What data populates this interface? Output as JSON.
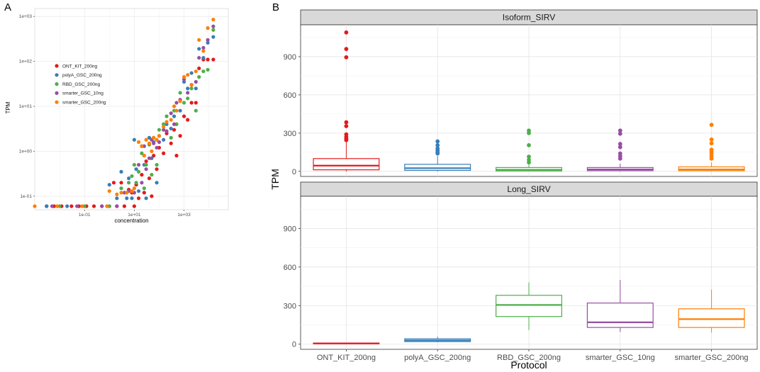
{
  "panels": {
    "a_label": "A",
    "b_label": "B"
  },
  "chart_data": [
    {
      "type": "scatter",
      "panel": "A",
      "xlabel": "concentration",
      "ylabel": "TPM",
      "x_scale": "log10",
      "y_scale": "log10",
      "xlim": [
        0.001,
        60000
      ],
      "ylim": [
        0.05,
        1500
      ],
      "x_ticks": [
        {
          "value": 0.1,
          "label": "1e-01"
        },
        {
          "value": 10,
          "label": "1e+01"
        },
        {
          "value": 1000,
          "label": "1e+03"
        }
      ],
      "y_ticks": [
        {
          "value": 0.1,
          "label": "1e-01"
        },
        {
          "value": 1,
          "label": "1e+00"
        },
        {
          "value": 10,
          "label": "1e+01"
        },
        {
          "value": 100,
          "label": "1e+02"
        },
        {
          "value": 1000,
          "label": "1e+03"
        }
      ],
      "legend_position": "inside-left",
      "series": [
        {
          "name": "ONT_KIT_200ng",
          "color": "#E41A1C",
          "points": [
            [
              0.003,
              0.06
            ],
            [
              0.006,
              0.06
            ],
            [
              0.012,
              0.06
            ],
            [
              0.03,
              0.06
            ],
            [
              0.06,
              0.06
            ],
            [
              0.12,
              0.06
            ],
            [
              0.24,
              0.06
            ],
            [
              0.5,
              0.06
            ],
            [
              1,
              0.06
            ],
            [
              1.5,
              0.2
            ],
            [
              2,
              0.06
            ],
            [
              3,
              0.2
            ],
            [
              4,
              0.06
            ],
            [
              6,
              0.14
            ],
            [
              8,
              0.12
            ],
            [
              10,
              0.06
            ],
            [
              12,
              0.18
            ],
            [
              15,
              0.09
            ],
            [
              20,
              0.3
            ],
            [
              25,
              0.12
            ],
            [
              30,
              0.6
            ],
            [
              40,
              0.25
            ],
            [
              50,
              0.1
            ],
            [
              60,
              0.8
            ],
            [
              80,
              0.4
            ],
            [
              100,
              1.2
            ],
            [
              150,
              0.9
            ],
            [
              200,
              2.5
            ],
            [
              300,
              1.5
            ],
            [
              400,
              3
            ],
            [
              500,
              0.8
            ],
            [
              700,
              2.2
            ],
            [
              1000,
              6
            ],
            [
              1400,
              5
            ],
            [
              2000,
              12
            ],
            [
              3000,
              12
            ],
            [
              4000,
              70
            ],
            [
              6000,
              110
            ],
            [
              9000,
              110
            ],
            [
              15000,
              110
            ]
          ]
        },
        {
          "name": "polyA_GSC_200ng",
          "color": "#377EB8",
          "points": [
            [
              0.003,
              0.06
            ],
            [
              0.02,
              0.06
            ],
            [
              1,
              0.18
            ],
            [
              2,
              0.09
            ],
            [
              3,
              0.35
            ],
            [
              5,
              0.09
            ],
            [
              6,
              0.25
            ],
            [
              8,
              0.09
            ],
            [
              10,
              1.8
            ],
            [
              12,
              0.4
            ],
            [
              15,
              0.13
            ],
            [
              20,
              1.3
            ],
            [
              25,
              0.5
            ],
            [
              30,
              0.09
            ],
            [
              40,
              2
            ],
            [
              50,
              0.7
            ],
            [
              60,
              1.6
            ],
            [
              80,
              0.2
            ],
            [
              100,
              2.2
            ],
            [
              150,
              1.8
            ],
            [
              200,
              4
            ],
            [
              300,
              3.2
            ],
            [
              400,
              6
            ],
            [
              500,
              4
            ],
            [
              700,
              8
            ],
            [
              1000,
              35
            ],
            [
              1400,
              25
            ],
            [
              2000,
              55
            ],
            [
              3000,
              25
            ],
            [
              4000,
              190
            ],
            [
              6000,
              120
            ],
            [
              9000,
              260
            ],
            [
              15000,
              350
            ]
          ]
        },
        {
          "name": "RBD_GSC_200ng",
          "color": "#4DAF4A",
          "points": [
            [
              0.01,
              0.06
            ],
            [
              0.1,
              0.06
            ],
            [
              1,
              0.06
            ],
            [
              3,
              0.15
            ],
            [
              6,
              0.2
            ],
            [
              8,
              0.28
            ],
            [
              10,
              0.5
            ],
            [
              12,
              0.2
            ],
            [
              15,
              0.35
            ],
            [
              20,
              0.9
            ],
            [
              25,
              0.15
            ],
            [
              30,
              0.5
            ],
            [
              40,
              1.4
            ],
            [
              50,
              0.3
            ],
            [
              60,
              2
            ],
            [
              80,
              0.5
            ],
            [
              100,
              3
            ],
            [
              150,
              4
            ],
            [
              200,
              6
            ],
            [
              300,
              2
            ],
            [
              400,
              8
            ],
            [
              500,
              4
            ],
            [
              700,
              20
            ],
            [
              1000,
              12
            ],
            [
              1400,
              15
            ],
            [
              2000,
              25
            ],
            [
              3000,
              8
            ],
            [
              4000,
              45
            ],
            [
              6000,
              60
            ],
            [
              9000,
              65
            ],
            [
              15000,
              500
            ]
          ]
        },
        {
          "name": "smarter_GSC_10ng",
          "color": "#984EA3",
          "points": [
            [
              0.005,
              0.06
            ],
            [
              0.05,
              0.06
            ],
            [
              0.5,
              0.06
            ],
            [
              2,
              0.06
            ],
            [
              4,
              0.12
            ],
            [
              6,
              0.13
            ],
            [
              10,
              0.12
            ],
            [
              15,
              0.5
            ],
            [
              20,
              0.2
            ],
            [
              25,
              1.3
            ],
            [
              30,
              0.4
            ],
            [
              40,
              0.7
            ],
            [
              50,
              1.8
            ],
            [
              60,
              1.5
            ],
            [
              80,
              1.2
            ],
            [
              100,
              1.6
            ],
            [
              150,
              3
            ],
            [
              200,
              2.8
            ],
            [
              300,
              7
            ],
            [
              400,
              4
            ],
            [
              500,
              12
            ],
            [
              700,
              14
            ],
            [
              1000,
              40
            ],
            [
              1400,
              20
            ],
            [
              2000,
              30
            ],
            [
              3000,
              35
            ],
            [
              4000,
              120
            ],
            [
              6000,
              200
            ],
            [
              9000,
              300
            ],
            [
              15000,
              600
            ]
          ]
        },
        {
          "name": "smarter_GSC_200ng",
          "color": "#FF7F00",
          "points": [
            [
              0.001,
              0.06
            ],
            [
              0.008,
              0.06
            ],
            [
              0.08,
              0.06
            ],
            [
              0.8,
              0.06
            ],
            [
              1,
              0.13
            ],
            [
              2,
              0.11
            ],
            [
              3,
              0.12
            ],
            [
              5,
              0.12
            ],
            [
              8,
              0.13
            ],
            [
              10,
              0.15
            ],
            [
              15,
              1.6
            ],
            [
              20,
              1.3
            ],
            [
              25,
              0.8
            ],
            [
              30,
              1.8
            ],
            [
              40,
              1.5
            ],
            [
              50,
              1
            ],
            [
              60,
              2
            ],
            [
              80,
              1.8
            ],
            [
              100,
              2.2
            ],
            [
              150,
              3.5
            ],
            [
              200,
              4.5
            ],
            [
              300,
              5
            ],
            [
              400,
              10
            ],
            [
              500,
              8
            ],
            [
              700,
              13
            ],
            [
              1000,
              45
            ],
            [
              1400,
              50
            ],
            [
              2000,
              30
            ],
            [
              3000,
              60
            ],
            [
              4000,
              300
            ],
            [
              6000,
              170
            ],
            [
              9000,
              550
            ],
            [
              15000,
              850
            ]
          ]
        }
      ]
    },
    {
      "type": "box",
      "panel": "B",
      "xlabel": "Protocol",
      "ylabel": "TPM",
      "categories": [
        "ONT_KIT_200ng",
        "polyA_GSC_200ng",
        "RBD_GSC_200ng",
        "smarter_GSC_10ng",
        "smarter_GSC_200ng"
      ],
      "colors": [
        "#E41A1C",
        "#377EB8",
        "#4DAF4A",
        "#984EA3",
        "#FF7F00"
      ],
      "ylim": [
        -40,
        1150
      ],
      "y_ticks": [
        0,
        300,
        600,
        900
      ],
      "facets": [
        {
          "title": "Isoform_SIRV",
          "boxes": [
            {
              "min": 0,
              "q1": 12,
              "median": 45,
              "q3": 100,
              "max": 240,
              "outliers": [
                1090,
                960,
                895,
                385,
                355,
                290,
                270,
                255,
                245
              ]
            },
            {
              "min": 0,
              "q1": 8,
              "median": 25,
              "q3": 55,
              "max": 120,
              "outliers": [
                235,
                205,
                180,
                165,
                150,
                140
              ]
            },
            {
              "min": 0,
              "q1": 3,
              "median": 12,
              "q3": 30,
              "max": 65,
              "outliers": [
                320,
                300,
                205,
                115,
                90,
                70
              ]
            },
            {
              "min": 0,
              "q1": 5,
              "median": 15,
              "q3": 30,
              "max": 60,
              "outliers": [
                320,
                295,
                215,
                190,
                140,
                120,
                100
              ]
            },
            {
              "min": 0,
              "q1": 5,
              "median": 15,
              "q3": 35,
              "max": 70,
              "outliers": [
                365,
                250,
                220,
                170,
                155,
                140,
                120,
                100
              ]
            }
          ]
        },
        {
          "title": "Long_SIRV",
          "boxes": [
            {
              "min": 2,
              "q1": 4,
              "median": 6,
              "q3": 9,
              "max": 12,
              "outliers": []
            },
            {
              "min": 15,
              "q1": 20,
              "median": 30,
              "q3": 42,
              "max": 58,
              "outliers": []
            },
            {
              "min": 110,
              "q1": 215,
              "median": 305,
              "q3": 380,
              "max": 480,
              "outliers": []
            },
            {
              "min": 95,
              "q1": 130,
              "median": 170,
              "q3": 320,
              "max": 500,
              "outliers": []
            },
            {
              "min": 90,
              "q1": 130,
              "median": 195,
              "q3": 275,
              "max": 425,
              "outliers": []
            }
          ]
        }
      ]
    }
  ]
}
